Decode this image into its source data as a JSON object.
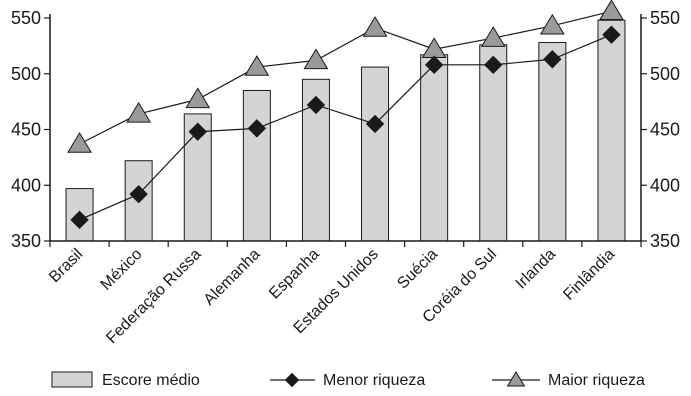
{
  "chart_data": {
    "type": "bar",
    "categories": [
      "Brasil",
      "México",
      "Federação Russa",
      "Alemanha",
      "Espanha",
      "Estados Unidos",
      "Suécia",
      "Coréia do Sul",
      "Irlanda",
      "Finlândia"
    ],
    "ylim": [
      350,
      550
    ],
    "yticks": [
      350,
      400,
      450,
      500,
      550
    ],
    "left_axis_ticks": [
      "350",
      "400",
      "450",
      "500",
      "550"
    ],
    "right_axis_ticks": [
      "350",
      "400",
      "450",
      "500",
      "550"
    ],
    "grid": false,
    "legend_position": "bottom",
    "series": [
      {
        "name": "Escore médio",
        "type": "bar",
        "color": "#d4d4d4",
        "values": [
          397,
          422,
          464,
          485,
          495,
          506,
          517,
          526,
          528,
          548
        ]
      },
      {
        "name": "Menor riqueza",
        "type": "line",
        "marker": "diamond",
        "color": "#1a1a1a",
        "values": [
          369,
          392,
          448,
          451,
          472,
          455,
          508,
          508,
          513,
          535
        ]
      },
      {
        "name": "Maior riqueza",
        "type": "line",
        "marker": "triangle",
        "color": "#9a9a9a",
        "values": [
          437,
          464,
          477,
          506,
          512,
          541,
          522,
          532,
          543,
          556
        ]
      }
    ]
  }
}
